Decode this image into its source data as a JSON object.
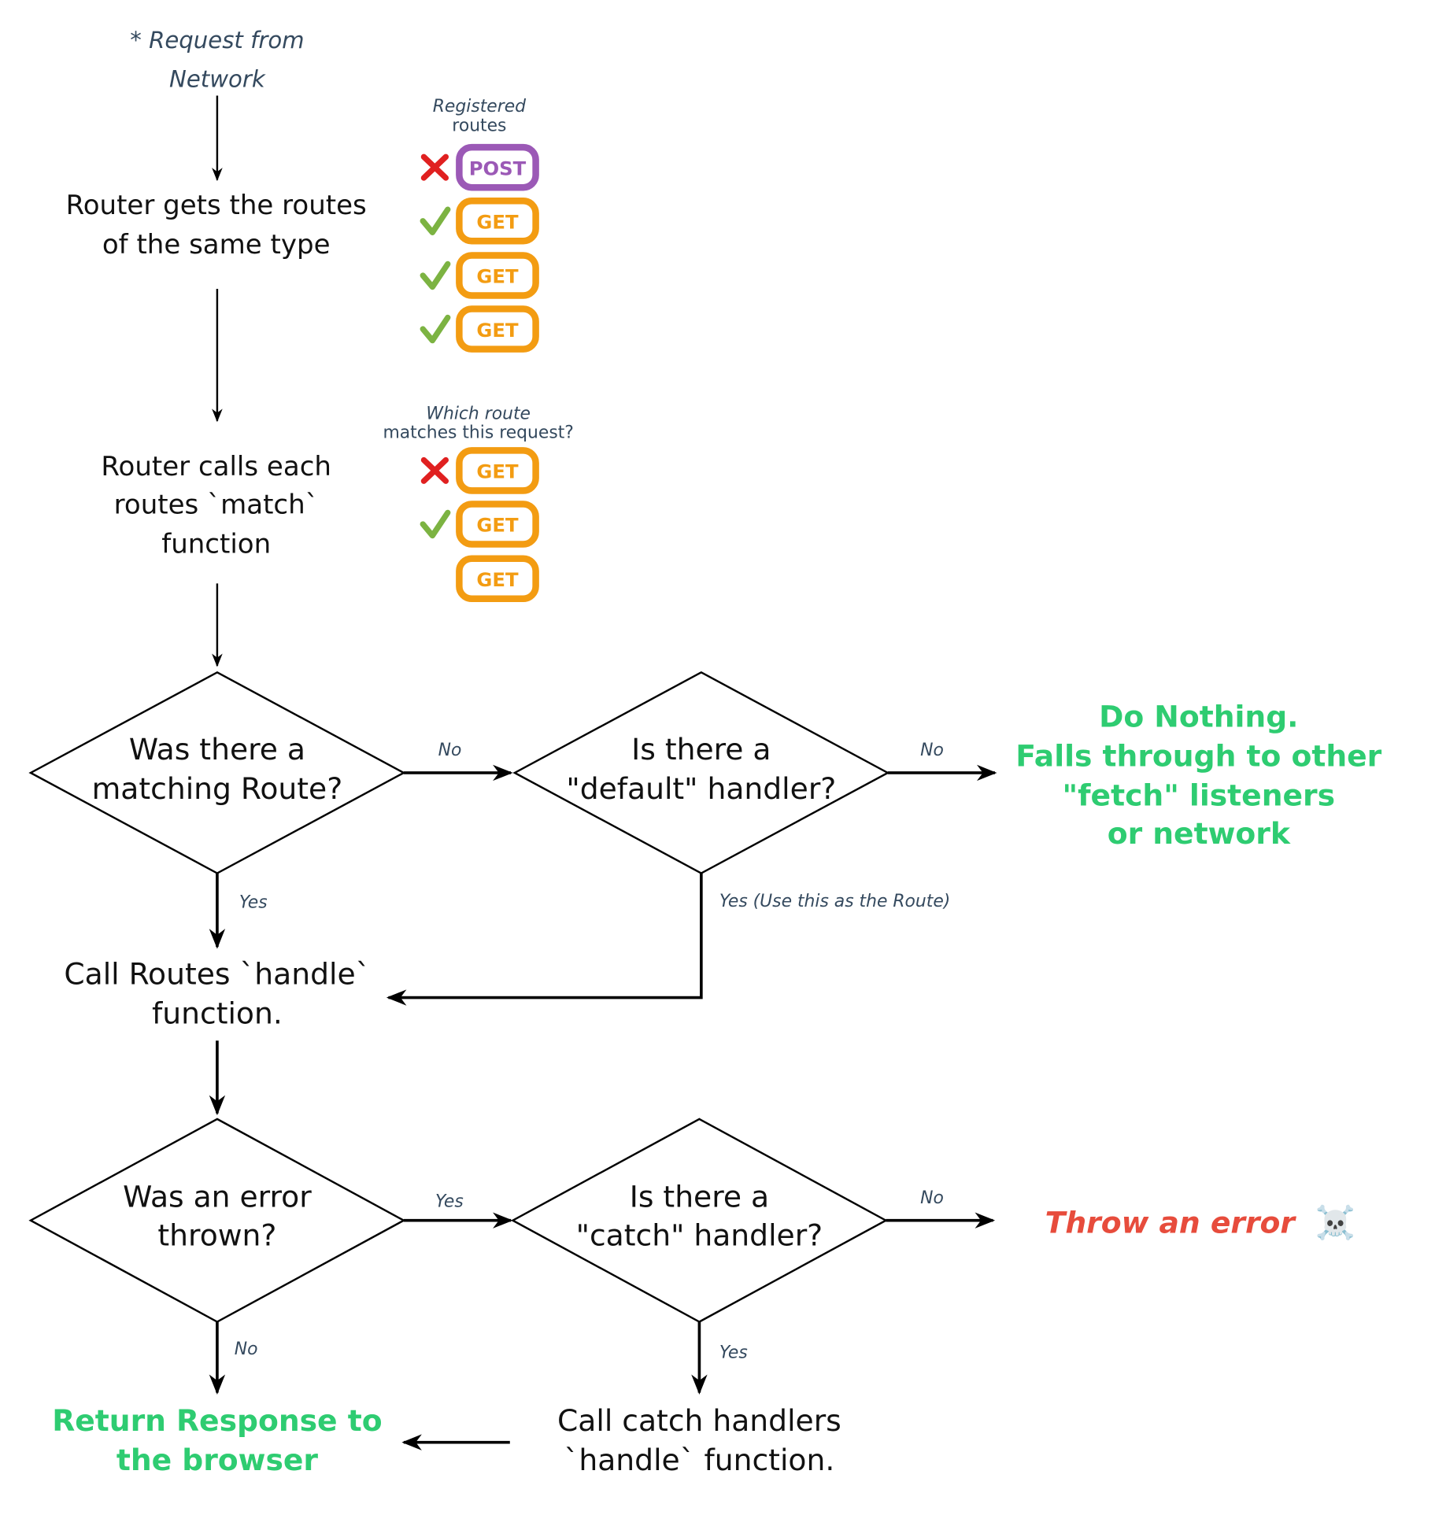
{
  "colors": {
    "get": "#f39c12",
    "post": "#9b59b6",
    "check": "#7cb342",
    "cross": "#e02020",
    "success": "#2ecc71",
    "error": "#e74c3c",
    "note": "#34495e"
  },
  "start": {
    "line1": "* Request from",
    "line2": "Network"
  },
  "step1": {
    "line1": "Router gets the routes",
    "line2": "of the same type"
  },
  "registered": {
    "title1": "Registered",
    "title2": "routes",
    "routes": [
      {
        "method": "POST",
        "status": "cross"
      },
      {
        "method": "GET",
        "status": "check"
      },
      {
        "method": "GET",
        "status": "check"
      },
      {
        "method": "GET",
        "status": "check"
      }
    ]
  },
  "step2": {
    "line1": "Router calls each",
    "line2": "routes `match`",
    "line3": "function"
  },
  "matching": {
    "title1": "Which route",
    "title2": "matches this request?",
    "routes": [
      {
        "method": "GET",
        "status": "cross"
      },
      {
        "method": "GET",
        "status": "check"
      },
      {
        "method": "GET",
        "status": "none"
      }
    ]
  },
  "decision1": {
    "line1": "Was there a",
    "line2": "matching Route?",
    "no": "No",
    "yes": "Yes"
  },
  "decision2": {
    "line1": "Is there a",
    "line2": "\"default\" handler?",
    "no": "No",
    "yes": "Yes (Use this as the Route)"
  },
  "do_nothing": {
    "line1": "Do Nothing.",
    "line2": "Falls through to other",
    "line3": "\"fetch\" listeners",
    "line4": "or network"
  },
  "step3": {
    "line1": "Call Routes `handle`",
    "line2": "function."
  },
  "decision3": {
    "line1": "Was an error",
    "line2": "thrown?",
    "yes": "Yes",
    "no": "No"
  },
  "decision4": {
    "line1": "Is there a",
    "line2": "\"catch\" handler?",
    "no": "No",
    "yes": "Yes"
  },
  "throw": {
    "text": "Throw an error",
    "icon": "skull-crossbones-icon",
    "emoji": "☠️"
  },
  "return": {
    "line1": "Return Response to",
    "line2": "the browser"
  },
  "catch_step": {
    "line1": "Call catch handlers",
    "line2": "`handle` function."
  }
}
